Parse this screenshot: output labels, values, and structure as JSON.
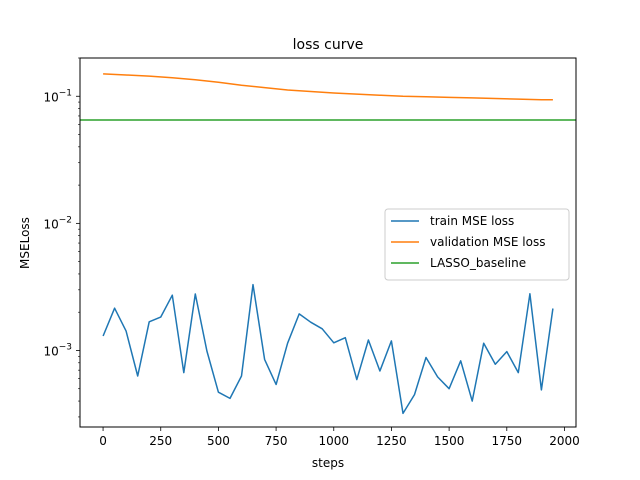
{
  "chart_data": {
    "type": "line",
    "title": "loss curve",
    "xlabel": "steps",
    "ylabel": "MSELoss",
    "yscale": "log",
    "xlim": [
      -100,
      2050
    ],
    "ylim": [
      0.00025,
      0.2
    ],
    "xticks": [
      0,
      250,
      500,
      750,
      1000,
      1250,
      1500,
      1750,
      2000
    ],
    "yticks": [
      0.001,
      0.01,
      0.1
    ],
    "ytick_labels": [
      {
        "base": "10",
        "exp": "−3"
      },
      {
        "base": "10",
        "exp": "−2"
      },
      {
        "base": "10",
        "exp": "−1"
      }
    ],
    "legend_position": "center-right",
    "series": [
      {
        "name": "train MSE loss",
        "color": "#1f77b4",
        "x": [
          0,
          50,
          100,
          150,
          200,
          250,
          300,
          350,
          400,
          450,
          500,
          550,
          600,
          650,
          700,
          750,
          800,
          850,
          900,
          950,
          1000,
          1050,
          1100,
          1150,
          1200,
          1250,
          1300,
          1350,
          1400,
          1450,
          1500,
          1550,
          1600,
          1650,
          1700,
          1750,
          1800,
          1850,
          1900,
          1950
        ],
        "values": [
          0.0013,
          0.00215,
          0.00142,
          0.00063,
          0.00168,
          0.00183,
          0.00272,
          0.00067,
          0.00278,
          0.00099,
          0.00047,
          0.00042,
          0.00063,
          0.0033,
          0.00085,
          0.00054,
          0.00114,
          0.00194,
          0.00167,
          0.00148,
          0.00115,
          0.00126,
          0.00059,
          0.00121,
          0.00069,
          0.00119,
          0.00032,
          0.00045,
          0.00088,
          0.00062,
          0.0005,
          0.00083,
          0.0004,
          0.00114,
          0.00078,
          0.00098,
          0.00067,
          0.00279,
          0.00049,
          0.00214
        ]
      },
      {
        "name": "validation MSE loss",
        "color": "#ff7f0e",
        "x": [
          0,
          100,
          200,
          300,
          400,
          500,
          600,
          700,
          800,
          900,
          1000,
          1100,
          1200,
          1300,
          1400,
          1500,
          1600,
          1700,
          1800,
          1900,
          1950
        ],
        "values": [
          0.15,
          0.147,
          0.144,
          0.14,
          0.135,
          0.129,
          0.122,
          0.117,
          0.112,
          0.109,
          0.106,
          0.104,
          0.102,
          0.1,
          0.099,
          0.098,
          0.097,
          0.096,
          0.095,
          0.094,
          0.094
        ]
      },
      {
        "name": "LASSO_baseline",
        "color": "#2ca02c",
        "x": [
          -100,
          2050
        ],
        "values": [
          0.065,
          0.065
        ]
      }
    ]
  }
}
